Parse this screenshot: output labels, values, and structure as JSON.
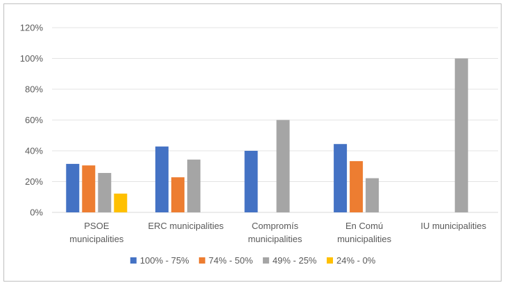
{
  "chart_data": {
    "type": "bar",
    "categories": [
      [
        "PSOE",
        "municipalities"
      ],
      [
        "ERC municipalities"
      ],
      [
        "Compromís",
        "municipalities"
      ],
      [
        "En Comú",
        "municipalities"
      ],
      [
        "IU municipalities"
      ]
    ],
    "series": [
      {
        "name": "100% - 75%",
        "color": "#4472C4",
        "values": [
          31.5,
          42.8,
          40.0,
          44.4,
          null
        ]
      },
      {
        "name": "74% - 50%",
        "color": "#ED7D31",
        "values": [
          30.5,
          22.8,
          null,
          33.3,
          null
        ]
      },
      {
        "name": "49% - 25%",
        "color": "#A5A5A5",
        "values": [
          25.6,
          34.3,
          60.0,
          22.2,
          100.0
        ]
      },
      {
        "name": "24% - 0%",
        "color": "#FFC000",
        "values": [
          12.2,
          null,
          null,
          null,
          null
        ]
      }
    ],
    "ylim": [
      0,
      120
    ],
    "yticks": [
      "0%",
      "20%",
      "40%",
      "60%",
      "80%",
      "100%",
      "120%"
    ],
    "grid": true,
    "legend_position": "bottom",
    "title": "",
    "xlabel": "",
    "ylabel": ""
  }
}
